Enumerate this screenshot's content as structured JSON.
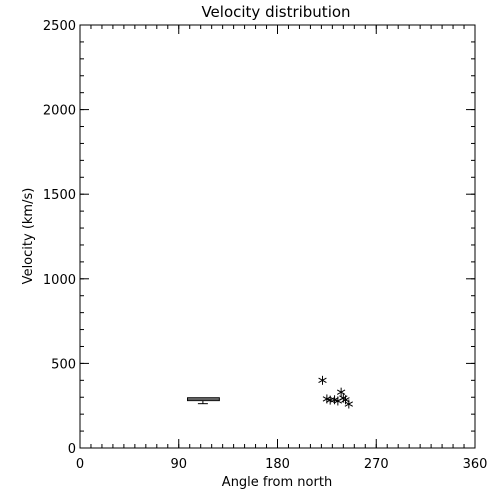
{
  "chart_data": {
    "type": "scatter",
    "title": "Velocity distribution",
    "xlabel": "Angle from north",
    "ylabel": "Velocity (km/s)",
    "xlim": [
      0,
      360
    ],
    "ylim": [
      0,
      2500
    ],
    "xticks": [
      0,
      90,
      180,
      270,
      360
    ],
    "yticks": [
      0,
      500,
      1000,
      1500,
      2000,
      2500
    ],
    "grid": false,
    "boxplot": {
      "x": 112,
      "x_range": [
        98,
        127
      ],
      "median": 289,
      "q1": 280,
      "q3": 297,
      "whisker_low": 262,
      "whisker_high": 297
    },
    "points": [
      {
        "x": 221,
        "y": 400
      },
      {
        "x": 225,
        "y": 290
      },
      {
        "x": 228,
        "y": 283
      },
      {
        "x": 232,
        "y": 285
      },
      {
        "x": 235,
        "y": 278
      },
      {
        "x": 238,
        "y": 330
      },
      {
        "x": 240,
        "y": 295
      },
      {
        "x": 242,
        "y": 285
      },
      {
        "x": 245,
        "y": 260
      }
    ],
    "marker": "asterisk",
    "colors": {
      "foreground": "#000000",
      "background": "#ffffff"
    }
  }
}
